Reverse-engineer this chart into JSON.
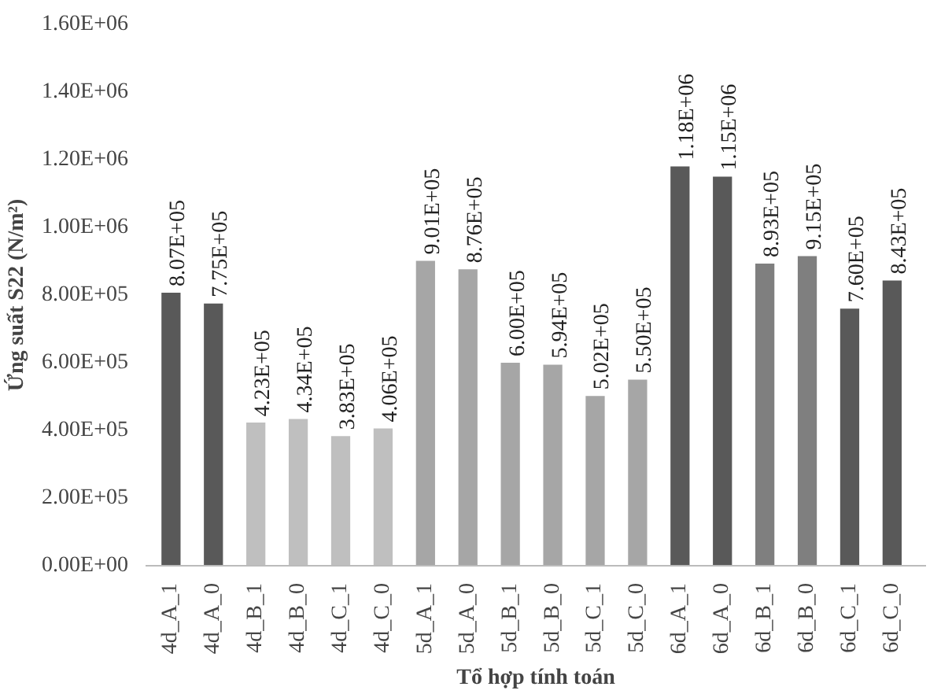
{
  "chart_data": {
    "type": "bar",
    "xlabel": "Tổ hợp tính toán",
    "ylabel": "Ứng suất S22 (N/m²)",
    "categories": [
      "4d_A_1",
      "4d_A_0",
      "4d_B_1",
      "4d_B_0",
      "4d_C_1",
      "4d_C_0",
      "5d_A_1",
      "5d_A_0",
      "5d_B_1",
      "5d_B_0",
      "5d_C_1",
      "5d_C_0",
      "6d_A_1",
      "6d_A_0",
      "6d_B_1",
      "6d_B_0",
      "6d_C_1",
      "6d_C_0"
    ],
    "values": [
      807000,
      775000,
      423000,
      434000,
      383000,
      406000,
      901000,
      876000,
      600000,
      594000,
      502000,
      550000,
      1180000,
      1150000,
      893000,
      915000,
      760000,
      843000
    ],
    "value_labels": [
      "8.07E+05",
      "7.75E+05",
      "4.23E+05",
      "4.34E+05",
      "3.83E+05",
      "4.06E+05",
      "9.01E+05",
      "8.76E+05",
      "6.00E+05",
      "5.94E+05",
      "5.02E+05",
      "5.50E+05",
      "1.18E+06",
      "1.15E+06",
      "8.93E+05",
      "9.15E+05",
      "7.60E+05",
      "8.43E+05"
    ],
    "colors": [
      "#595959",
      "#595959",
      "#bfbfbf",
      "#bfbfbf",
      "#bfbfbf",
      "#bfbfbf",
      "#a6a6a6",
      "#a6a6a6",
      "#a6a6a6",
      "#a6a6a6",
      "#a6a6a6",
      "#a6a6a6",
      "#595959",
      "#595959",
      "#7f7f7f",
      "#7f7f7f",
      "#595959",
      "#595959"
    ],
    "ylim": [
      0,
      1600000
    ],
    "yticks": [
      {
        "value": 0,
        "label": "0.00E+00"
      },
      {
        "value": 200000,
        "label": "2.00E+05"
      },
      {
        "value": 400000,
        "label": "4.00E+05"
      },
      {
        "value": 600000,
        "label": "6.00E+05"
      },
      {
        "value": 800000,
        "label": "8.00E+05"
      },
      {
        "value": 1000000,
        "label": "1.00E+06"
      },
      {
        "value": 1200000,
        "label": "1.20E+06"
      },
      {
        "value": 1400000,
        "label": "1.40E+06"
      },
      {
        "value": 1600000,
        "label": "1.60E+06"
      }
    ],
    "grid": false
  }
}
